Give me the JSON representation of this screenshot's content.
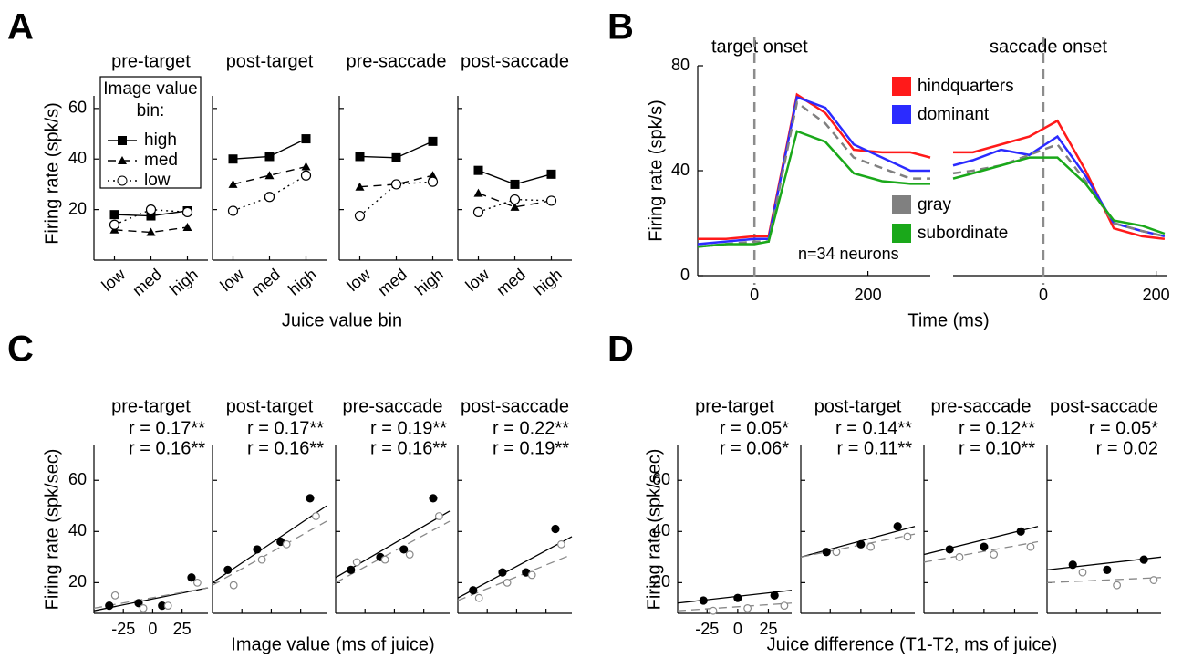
{
  "chart_data": [
    {
      "panel": "A",
      "type": "line",
      "ylabel": "Firing rate (spk/s)",
      "xlabel": "Juice value bin",
      "categories": [
        "low",
        "med",
        "high"
      ],
      "ylim": [
        0,
        65
      ],
      "yticks": [
        20,
        40,
        60
      ],
      "legend_title": "Image value bin:",
      "series": [
        {
          "name": "high",
          "color": "#000000",
          "dash": "solid",
          "marker": "square"
        },
        {
          "name": "med",
          "color": "#000000",
          "dash": "dashed",
          "marker": "triangle"
        },
        {
          "name": "low",
          "color": "#000000",
          "dash": "dotted",
          "marker": "circle"
        }
      ],
      "subplots": [
        {
          "title": "pre-target",
          "values": [
            [
              18,
              17.5,
              19.5
            ],
            [
              12,
              11,
              13
            ],
            [
              14,
              20,
              19
            ]
          ]
        },
        {
          "title": "post-target",
          "values": [
            [
              40,
              41,
              48
            ],
            [
              30,
              33.5,
              37
            ],
            [
              19.5,
              25,
              33.5
            ]
          ]
        },
        {
          "title": "pre-saccade",
          "values": [
            [
              41,
              40.5,
              47
            ],
            [
              29,
              30,
              33.5
            ],
            [
              17.5,
              30,
              31
            ]
          ]
        },
        {
          "title": "post-saccade",
          "values": [
            [
              35.5,
              30,
              34
            ],
            [
              26.5,
              21,
              23.5
            ],
            [
              19,
              24,
              23.5
            ]
          ]
        }
      ]
    },
    {
      "panel": "B",
      "type": "line",
      "ylabel": "Firing rate (spk/s)",
      "xlabel": "Time (ms)",
      "ylim": [
        0,
        80
      ],
      "yticks": [
        0,
        40,
        80
      ],
      "series": [
        {
          "name": "hindquarters",
          "color": "#ff1a1a",
          "dash": "solid"
        },
        {
          "name": "dominant",
          "color": "#2b2bff",
          "dash": "solid"
        },
        {
          "name": "gray",
          "color": "#808080",
          "dash": "dashed"
        },
        {
          "name": "subordinate",
          "color": "#1aa81a",
          "dash": "solid"
        }
      ],
      "subplots": [
        {
          "title": "target onset",
          "xlim": [
            -100,
            310
          ],
          "xticks": [
            0,
            200
          ],
          "event_x": 0,
          "annotation": "n=34 neurons",
          "x": [
            -100,
            -50,
            0,
            25,
            75,
            125,
            175,
            225,
            275,
            310
          ],
          "values": [
            [
              14,
              14,
              15,
              15,
              69,
              62,
              48,
              47,
              47,
              45
            ],
            [
              12,
              13,
              14,
              14,
              68,
              64,
              50,
              45,
              40,
              40
            ],
            [
              11,
              12,
              13,
              13,
              66,
              58,
              45,
              41,
              37,
              37
            ],
            [
              11,
              12,
              12,
              13,
              55,
              51,
              39,
              36,
              35,
              35
            ]
          ]
        },
        {
          "title": "saccade onset",
          "xlim": [
            -160,
            220
          ],
          "xticks": [
            0,
            200
          ],
          "event_x": 0,
          "x": [
            -160,
            -125,
            -75,
            -25,
            25,
            75,
            125,
            175,
            215
          ],
          "values": [
            [
              47,
              47,
              50,
              53,
              59,
              40,
              18,
              15,
              14
            ],
            [
              42,
              44,
              48,
              46,
              53,
              38,
              20,
              17,
              15
            ],
            [
              39,
              40,
              42,
              46,
              50,
              36,
              20,
              17,
              15
            ],
            [
              37,
              39,
              42,
              45,
              45,
              35,
              21,
              19,
              16
            ]
          ]
        }
      ]
    },
    {
      "panel": "C",
      "type": "scatter",
      "ylabel": "Firing rate (spk/sec)",
      "xlabel": "Image value (ms of juice)",
      "xlim": [
        -50,
        47
      ],
      "xticks": [
        -25,
        0,
        25
      ],
      "ylim": [
        8,
        74
      ],
      "yticks": [
        20,
        40,
        60
      ],
      "series": [
        {
          "color": "#000000",
          "dash": "solid",
          "marker": "filled"
        },
        {
          "color": "#888888",
          "dash": "dashed",
          "marker": "open"
        }
      ],
      "subplots": [
        {
          "title": "pre-target",
          "annotations": [
            "r = 0.17**",
            "r = 0.16**"
          ],
          "x": [
            [
              -37,
              -12,
              8,
              33
            ],
            [
              -32,
              -8,
              13,
              38
            ]
          ],
          "values": [
            [
              11,
              12,
              11,
              22
            ],
            [
              15,
              10,
              11,
              20
            ]
          ],
          "fits": [
            [
              9,
              18
            ],
            [
              10,
              18
            ]
          ]
        },
        {
          "title": "post-target",
          "annotations": [
            "r = 0.17**",
            "r = 0.16**"
          ],
          "x": [
            [
              -37,
              -12,
              8,
              33
            ],
            [
              -32,
              -8,
              13,
              38
            ]
          ],
          "values": [
            [
              25,
              33,
              36,
              53
            ],
            [
              19,
              29,
              35,
              46
            ]
          ],
          "fits": [
            [
              20,
              50
            ],
            [
              19,
              44
            ]
          ]
        },
        {
          "title": "pre-saccade",
          "annotations": [
            "r = 0.19**",
            "r = 0.16**"
          ],
          "x": [
            [
              -37,
              -12,
              8,
              33
            ],
            [
              -32,
              -8,
              13,
              38
            ]
          ],
          "values": [
            [
              25,
              30,
              33,
              53
            ],
            [
              28,
              29,
              31,
              46
            ]
          ],
          "fits": [
            [
              22,
              48
            ],
            [
              20,
              44
            ]
          ]
        },
        {
          "title": "post-saccade",
          "annotations": [
            "r = 0.22**",
            "r = 0.19**"
          ],
          "x": [
            [
              -37,
              -12,
              8,
              33
            ],
            [
              -32,
              -8,
              13,
              38
            ]
          ],
          "values": [
            [
              17,
              24,
              24,
              41
            ],
            [
              14,
              20,
              23,
              35
            ]
          ],
          "fits": [
            [
              14,
              38
            ],
            [
              13,
              31
            ]
          ]
        }
      ]
    },
    {
      "panel": "D",
      "type": "scatter",
      "ylabel": "Firing rate (spk/sec)",
      "xlabel": "Juice difference (T1-T2, ms of juice)",
      "xlim": [
        -49,
        44
      ],
      "xticks": [
        -25,
        0,
        25
      ],
      "ylim": [
        8,
        74
      ],
      "yticks": [
        20,
        40,
        60
      ],
      "series": [
        {
          "color": "#000000",
          "dash": "solid",
          "marker": "filled"
        },
        {
          "color": "#888888",
          "dash": "dashed",
          "marker": "open"
        }
      ],
      "subplots": [
        {
          "title": "pre-target",
          "annotations": [
            "r = 0.05*",
            "r = 0.06*"
          ],
          "x": [
            [
              -28,
              0,
              30
            ],
            [
              -20,
              8,
              38
            ]
          ],
          "values": [
            [
              13,
              14,
              15
            ],
            [
              9,
              10,
              11
            ]
          ],
          "fits": [
            [
              12,
              17
            ],
            [
              9,
              12
            ]
          ]
        },
        {
          "title": "post-target",
          "annotations": [
            "r = 0.14**",
            "r = 0.11**"
          ],
          "x": [
            [
              -28,
              0,
              30
            ],
            [
              -20,
              8,
              38
            ]
          ],
          "values": [
            [
              32,
              35,
              42
            ],
            [
              32,
              34,
              38
            ]
          ],
          "fits": [
            [
              30,
              42
            ],
            [
              30,
              39
            ]
          ]
        },
        {
          "title": "pre-saccade",
          "annotations": [
            "r = 0.12**",
            "r = 0.10**"
          ],
          "x": [
            [
              -28,
              0,
              30
            ],
            [
              -20,
              8,
              38
            ]
          ],
          "values": [
            [
              33,
              34,
              40
            ],
            [
              30,
              31,
              34
            ]
          ],
          "fits": [
            [
              31,
              42
            ],
            [
              28,
              36
            ]
          ]
        },
        {
          "title": "post-saccade",
          "annotations": [
            "r = 0.05*",
            "r = 0.02"
          ],
          "x": [
            [
              -28,
              0,
              30
            ],
            [
              -20,
              8,
              38
            ]
          ],
          "values": [
            [
              27,
              25,
              29
            ],
            [
              24,
              19,
              21
            ]
          ],
          "fits": [
            [
              25,
              30
            ],
            [
              20,
              22
            ]
          ]
        }
      ]
    }
  ]
}
